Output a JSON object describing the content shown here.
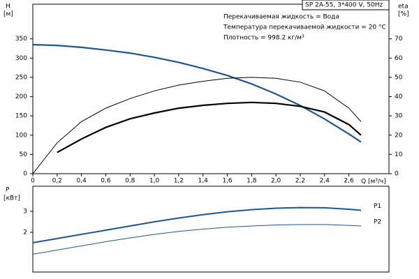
{
  "chart_data": [
    {
      "type": "line",
      "y_label": "H",
      "y_unit": "[м]",
      "y2_label": "eta",
      "y2_unit": "[%]",
      "x_label": "Q [м³/ч]",
      "model": "SP 2A-55, 3*400 V, 50Hz",
      "annotations": [
        "Перекачиваемая жидкость = Вода",
        "Температура перекачиваемой жидкости = 20 °C",
        "Плотность = 998.2 кг/м³"
      ],
      "x": [
        0,
        0.2,
        0.4,
        0.6,
        0.8,
        1.0,
        1.2,
        1.4,
        1.6,
        1.8,
        2.0,
        2.2,
        2.4,
        2.6,
        2.7
      ],
      "xlim": [
        0,
        2.93
      ],
      "xticks": [
        0,
        {
          "value": 0.2,
          "label": "0,2"
        },
        {
          "value": 0.4,
          "label": "0,4"
        },
        {
          "value": 0.6,
          "label": "0,6"
        },
        {
          "value": 0.8,
          "label": "0,8"
        },
        {
          "value": 1.0,
          "label": "1,0"
        },
        {
          "value": 1.2,
          "label": "1,2"
        },
        {
          "value": 1.4,
          "label": "1,4"
        },
        {
          "value": 1.6,
          "label": "1,6"
        },
        {
          "value": 1.8,
          "label": "1,8"
        },
        {
          "value": 2.0,
          "label": "2,0"
        },
        {
          "value": 2.2,
          "label": "2,2"
        },
        {
          "value": 2.4,
          "label": "2,4"
        },
        {
          "value": 2.6,
          "label": "2,6"
        }
      ],
      "ylim": [
        0,
        440
      ],
      "yticks": [
        0,
        50,
        100,
        150,
        200,
        250,
        300,
        350
      ],
      "y2lim": [
        0,
        88
      ],
      "y2ticks": [
        0,
        10,
        20,
        30,
        40,
        50,
        60,
        70
      ],
      "series": [
        {
          "color": "#1f5591",
          "line_width": 2.2,
          "values": [
            335,
            333,
            328,
            321,
            313,
            302,
            289,
            273,
            255,
            233,
            207,
            177,
            142,
            103,
            82
          ]
        },
        {
          "color": "#000000",
          "line_width": 1,
          "axis": "y2",
          "values": [
            0,
            16,
            27,
            34,
            39,
            43,
            46,
            48,
            49.5,
            50,
            49.5,
            47.5,
            43,
            34,
            27
          ]
        },
        {
          "color": "#000000",
          "line_width": 2.2,
          "axis": "y2",
          "values": [
            null,
            11,
            18,
            24,
            28.5,
            31.5,
            34,
            35.5,
            36.5,
            37,
            36.5,
            35,
            32,
            25.5,
            20
          ]
        }
      ]
    },
    {
      "type": "line",
      "y_label": "P",
      "y_unit": "[кВт]",
      "x": [
        0,
        0.2,
        0.4,
        0.6,
        0.8,
        1.0,
        1.2,
        1.4,
        1.6,
        1.8,
        2.0,
        2.2,
        2.4,
        2.6,
        2.7
      ],
      "xlim": [
        0,
        2.93
      ],
      "ylim": [
        0.1,
        4.2
      ],
      "yticks": [
        2,
        3
      ],
      "series": [
        {
          "name": "P1",
          "color": "#1f5591",
          "line_width": 2,
          "values": [
            1.5,
            1.7,
            1.9,
            2.1,
            2.3,
            2.5,
            2.68,
            2.84,
            2.98,
            3.08,
            3.15,
            3.18,
            3.17,
            3.1,
            3.05
          ]
        },
        {
          "name": "P2",
          "color": "#1f5591",
          "line_width": 1,
          "values": [
            0.95,
            1.15,
            1.35,
            1.55,
            1.73,
            1.9,
            2.04,
            2.15,
            2.24,
            2.3,
            2.35,
            2.37,
            2.37,
            2.33,
            2.3
          ]
        }
      ]
    }
  ]
}
